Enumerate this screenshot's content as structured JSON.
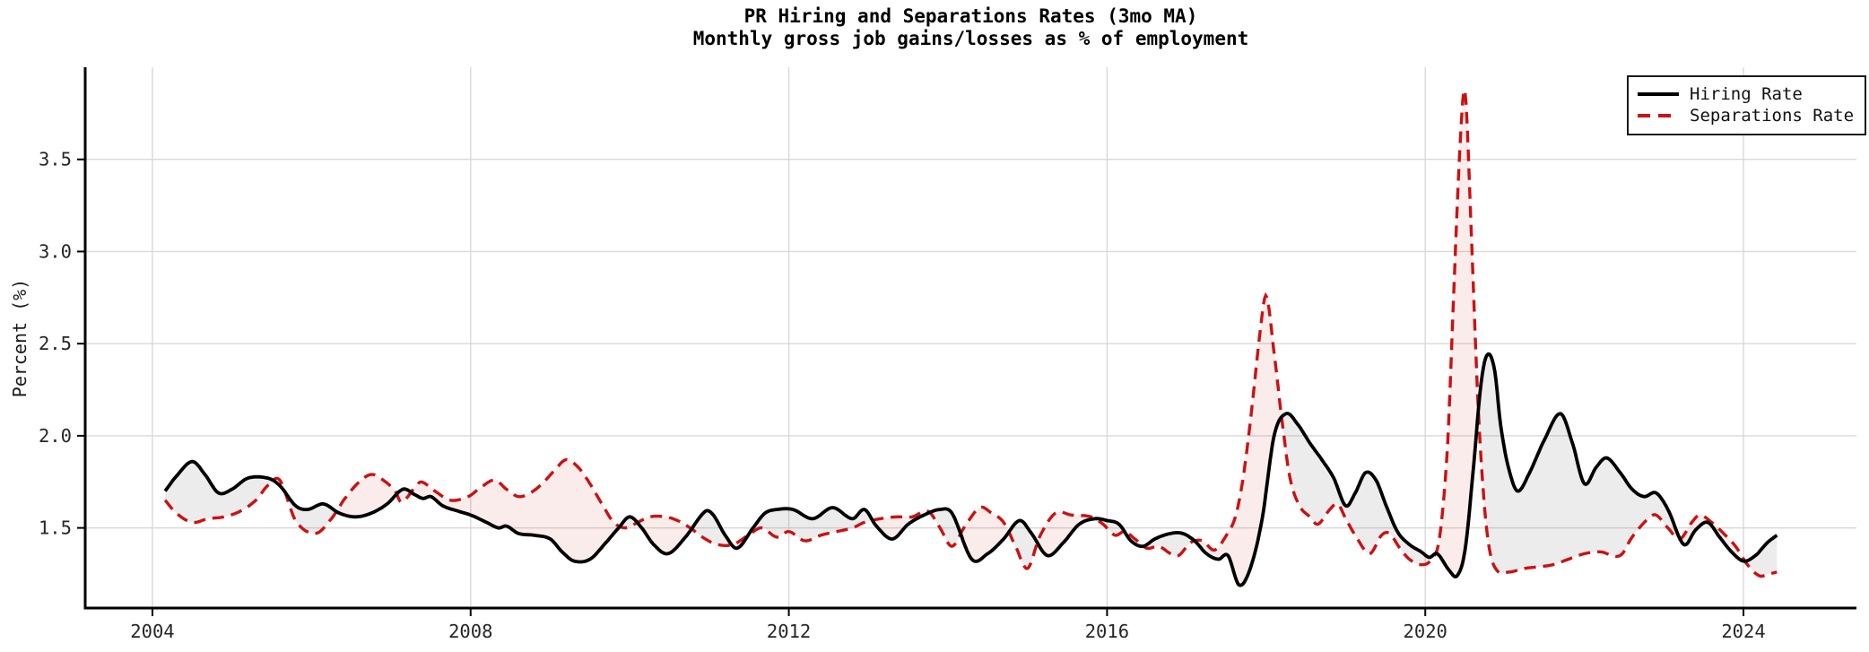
{
  "chart_data": {
    "type": "line",
    "title": "PR Hiring and Separations Rates (3mo MA)",
    "subtitle": "Monthly gross job gains/losses as % of employment",
    "xlabel": "",
    "ylabel": "Percent (%)",
    "xlim": [
      2003.155,
      2025.42
    ],
    "ylim": [
      1.065,
      4.0
    ],
    "x_ticks": [
      2004,
      2008,
      2012,
      2016,
      2020,
      2024
    ],
    "y_ticks": [
      1.5,
      2.0,
      2.5,
      3.0,
      3.5
    ],
    "grid": true,
    "grid_color": "#d9d9d9",
    "spine_color": "#000000",
    "tick_label_color": "#262626",
    "legend_position": "upper right",
    "fill_hiring_above_color": "rgba(128,128,128,0.15)",
    "fill_separations_above_color": "rgba(204,17,17,0.08)",
    "series": [
      {
        "name": "Hiring Rate",
        "color": "#000000",
        "style": "solid",
        "points": [
          [
            2004.16,
            1.7
          ],
          [
            2004.3,
            1.78
          ],
          [
            2004.5,
            1.86
          ],
          [
            2004.66,
            1.79
          ],
          [
            2004.83,
            1.69
          ],
          [
            2005.0,
            1.71
          ],
          [
            2005.2,
            1.77
          ],
          [
            2005.45,
            1.77
          ],
          [
            2005.6,
            1.73
          ],
          [
            2005.8,
            1.62
          ],
          [
            2005.95,
            1.6
          ],
          [
            2006.15,
            1.63
          ],
          [
            2006.35,
            1.58
          ],
          [
            2006.55,
            1.56
          ],
          [
            2006.75,
            1.58
          ],
          [
            2006.95,
            1.63
          ],
          [
            2007.15,
            1.71
          ],
          [
            2007.3,
            1.68
          ],
          [
            2007.4,
            1.66
          ],
          [
            2007.5,
            1.67
          ],
          [
            2007.65,
            1.62
          ],
          [
            2007.85,
            1.59
          ],
          [
            2008.0,
            1.57
          ],
          [
            2008.2,
            1.53
          ],
          [
            2008.35,
            1.5
          ],
          [
            2008.45,
            1.51
          ],
          [
            2008.6,
            1.47
          ],
          [
            2008.8,
            1.46
          ],
          [
            2009.0,
            1.44
          ],
          [
            2009.15,
            1.37
          ],
          [
            2009.3,
            1.32
          ],
          [
            2009.5,
            1.33
          ],
          [
            2009.7,
            1.42
          ],
          [
            2009.86,
            1.5
          ],
          [
            2010.0,
            1.56
          ],
          [
            2010.15,
            1.5
          ],
          [
            2010.3,
            1.41
          ],
          [
            2010.48,
            1.36
          ],
          [
            2010.7,
            1.45
          ],
          [
            2010.95,
            1.59
          ],
          [
            2011.05,
            1.57
          ],
          [
            2011.2,
            1.46
          ],
          [
            2011.35,
            1.39
          ],
          [
            2011.55,
            1.5
          ],
          [
            2011.7,
            1.58
          ],
          [
            2011.85,
            1.6
          ],
          [
            2012.05,
            1.6
          ],
          [
            2012.3,
            1.55
          ],
          [
            2012.55,
            1.61
          ],
          [
            2012.8,
            1.55
          ],
          [
            2012.95,
            1.6
          ],
          [
            2013.1,
            1.51
          ],
          [
            2013.3,
            1.44
          ],
          [
            2013.5,
            1.52
          ],
          [
            2013.7,
            1.57
          ],
          [
            2013.9,
            1.6
          ],
          [
            2014.05,
            1.58
          ],
          [
            2014.3,
            1.33
          ],
          [
            2014.5,
            1.36
          ],
          [
            2014.7,
            1.44
          ],
          [
            2014.9,
            1.54
          ],
          [
            2015.05,
            1.47
          ],
          [
            2015.25,
            1.35
          ],
          [
            2015.45,
            1.42
          ],
          [
            2015.65,
            1.52
          ],
          [
            2015.85,
            1.55
          ],
          [
            2016.0,
            1.54
          ],
          [
            2016.15,
            1.52
          ],
          [
            2016.3,
            1.43
          ],
          [
            2016.45,
            1.4
          ],
          [
            2016.6,
            1.44
          ],
          [
            2016.8,
            1.47
          ],
          [
            2016.95,
            1.47
          ],
          [
            2017.1,
            1.43
          ],
          [
            2017.25,
            1.36
          ],
          [
            2017.4,
            1.33
          ],
          [
            2017.52,
            1.35
          ],
          [
            2017.66,
            1.19
          ],
          [
            2017.8,
            1.28
          ],
          [
            2017.95,
            1.55
          ],
          [
            2018.1,
            2.0
          ],
          [
            2018.25,
            2.12
          ],
          [
            2018.4,
            2.06
          ],
          [
            2018.55,
            1.96
          ],
          [
            2018.7,
            1.87
          ],
          [
            2018.85,
            1.77
          ],
          [
            2019.0,
            1.62
          ],
          [
            2019.12,
            1.69
          ],
          [
            2019.25,
            1.8
          ],
          [
            2019.38,
            1.76
          ],
          [
            2019.5,
            1.63
          ],
          [
            2019.65,
            1.48
          ],
          [
            2019.8,
            1.41
          ],
          [
            2019.95,
            1.37
          ],
          [
            2020.05,
            1.34
          ],
          [
            2020.15,
            1.36
          ],
          [
            2020.3,
            1.27
          ],
          [
            2020.4,
            1.24
          ],
          [
            2020.5,
            1.38
          ],
          [
            2020.6,
            1.8
          ],
          [
            2020.7,
            2.28
          ],
          [
            2020.78,
            2.44
          ],
          [
            2020.87,
            2.36
          ],
          [
            2020.95,
            2.05
          ],
          [
            2021.05,
            1.82
          ],
          [
            2021.16,
            1.7
          ],
          [
            2021.3,
            1.79
          ],
          [
            2021.5,
            1.98
          ],
          [
            2021.7,
            2.12
          ],
          [
            2021.85,
            1.96
          ],
          [
            2022.0,
            1.74
          ],
          [
            2022.15,
            1.83
          ],
          [
            2022.28,
            1.88
          ],
          [
            2022.45,
            1.8
          ],
          [
            2022.6,
            1.71
          ],
          [
            2022.75,
            1.67
          ],
          [
            2022.9,
            1.69
          ],
          [
            2023.05,
            1.6
          ],
          [
            2023.25,
            1.41
          ],
          [
            2023.4,
            1.49
          ],
          [
            2023.55,
            1.53
          ],
          [
            2023.7,
            1.45
          ],
          [
            2023.85,
            1.37
          ],
          [
            2024.0,
            1.32
          ],
          [
            2024.15,
            1.35
          ],
          [
            2024.3,
            1.42
          ],
          [
            2024.42,
            1.46
          ]
        ]
      },
      {
        "name": "Separations Rate",
        "color": "#cc1111",
        "style": "dashed",
        "points": [
          [
            2004.16,
            1.65
          ],
          [
            2004.3,
            1.58
          ],
          [
            2004.5,
            1.53
          ],
          [
            2004.7,
            1.55
          ],
          [
            2004.9,
            1.56
          ],
          [
            2005.1,
            1.59
          ],
          [
            2005.3,
            1.65
          ],
          [
            2005.45,
            1.73
          ],
          [
            2005.6,
            1.76
          ],
          [
            2005.8,
            1.54
          ],
          [
            2006.05,
            1.47
          ],
          [
            2006.25,
            1.55
          ],
          [
            2006.42,
            1.66
          ],
          [
            2006.6,
            1.75
          ],
          [
            2006.76,
            1.79
          ],
          [
            2006.93,
            1.75
          ],
          [
            2007.05,
            1.7
          ],
          [
            2007.13,
            1.64
          ],
          [
            2007.3,
            1.72
          ],
          [
            2007.38,
            1.75
          ],
          [
            2007.55,
            1.7
          ],
          [
            2007.75,
            1.65
          ],
          [
            2007.97,
            1.67
          ],
          [
            2008.1,
            1.71
          ],
          [
            2008.3,
            1.76
          ],
          [
            2008.45,
            1.71
          ],
          [
            2008.6,
            1.67
          ],
          [
            2008.75,
            1.69
          ],
          [
            2008.9,
            1.74
          ],
          [
            2009.05,
            1.81
          ],
          [
            2009.2,
            1.87
          ],
          [
            2009.35,
            1.83
          ],
          [
            2009.5,
            1.74
          ],
          [
            2009.65,
            1.63
          ],
          [
            2009.8,
            1.53
          ],
          [
            2009.95,
            1.5
          ],
          [
            2010.1,
            1.53
          ],
          [
            2010.25,
            1.56
          ],
          [
            2010.45,
            1.56
          ],
          [
            2010.6,
            1.54
          ],
          [
            2010.76,
            1.5
          ],
          [
            2010.95,
            1.44
          ],
          [
            2011.1,
            1.41
          ],
          [
            2011.3,
            1.41
          ],
          [
            2011.52,
            1.47
          ],
          [
            2011.66,
            1.5
          ],
          [
            2011.85,
            1.45
          ],
          [
            2012.0,
            1.48
          ],
          [
            2012.2,
            1.43
          ],
          [
            2012.4,
            1.46
          ],
          [
            2012.6,
            1.48
          ],
          [
            2012.8,
            1.5
          ],
          [
            2012.95,
            1.53
          ],
          [
            2013.15,
            1.55
          ],
          [
            2013.35,
            1.56
          ],
          [
            2013.55,
            1.56
          ],
          [
            2013.75,
            1.59
          ],
          [
            2013.9,
            1.5
          ],
          [
            2014.05,
            1.4
          ],
          [
            2014.2,
            1.5
          ],
          [
            2014.4,
            1.61
          ],
          [
            2014.55,
            1.58
          ],
          [
            2014.7,
            1.53
          ],
          [
            2014.85,
            1.4
          ],
          [
            2015.0,
            1.28
          ],
          [
            2015.15,
            1.45
          ],
          [
            2015.35,
            1.58
          ],
          [
            2015.55,
            1.57
          ],
          [
            2015.8,
            1.56
          ],
          [
            2015.95,
            1.52
          ],
          [
            2016.1,
            1.46
          ],
          [
            2016.22,
            1.48
          ],
          [
            2016.35,
            1.44
          ],
          [
            2016.5,
            1.39
          ],
          [
            2016.65,
            1.4
          ],
          [
            2016.8,
            1.36
          ],
          [
            2016.9,
            1.35
          ],
          [
            2017.05,
            1.42
          ],
          [
            2017.2,
            1.43
          ],
          [
            2017.35,
            1.38
          ],
          [
            2017.5,
            1.46
          ],
          [
            2017.62,
            1.57
          ],
          [
            2017.72,
            1.8
          ],
          [
            2017.82,
            2.15
          ],
          [
            2017.92,
            2.55
          ],
          [
            2018.0,
            2.76
          ],
          [
            2018.1,
            2.45
          ],
          [
            2018.2,
            2.08
          ],
          [
            2018.3,
            1.77
          ],
          [
            2018.42,
            1.62
          ],
          [
            2018.55,
            1.56
          ],
          [
            2018.65,
            1.52
          ],
          [
            2018.8,
            1.6
          ],
          [
            2018.9,
            1.63
          ],
          [
            2019.0,
            1.55
          ],
          [
            2019.12,
            1.46
          ],
          [
            2019.3,
            1.36
          ],
          [
            2019.45,
            1.46
          ],
          [
            2019.55,
            1.47
          ],
          [
            2019.68,
            1.39
          ],
          [
            2019.8,
            1.33
          ],
          [
            2019.95,
            1.3
          ],
          [
            2020.08,
            1.33
          ],
          [
            2020.18,
            1.45
          ],
          [
            2020.28,
            1.95
          ],
          [
            2020.36,
            2.8
          ],
          [
            2020.44,
            3.6
          ],
          [
            2020.5,
            3.87
          ],
          [
            2020.57,
            3.2
          ],
          [
            2020.65,
            2.3
          ],
          [
            2020.72,
            1.75
          ],
          [
            2020.8,
            1.4
          ],
          [
            2020.9,
            1.27
          ],
          [
            2021.05,
            1.26
          ],
          [
            2021.25,
            1.28
          ],
          [
            2021.45,
            1.29
          ],
          [
            2021.6,
            1.3
          ],
          [
            2021.8,
            1.33
          ],
          [
            2022.0,
            1.36
          ],
          [
            2022.2,
            1.37
          ],
          [
            2022.45,
            1.35
          ],
          [
            2022.6,
            1.45
          ],
          [
            2022.8,
            1.55
          ],
          [
            2022.9,
            1.57
          ],
          [
            2023.05,
            1.5
          ],
          [
            2023.2,
            1.44
          ],
          [
            2023.35,
            1.53
          ],
          [
            2023.45,
            1.57
          ],
          [
            2023.6,
            1.53
          ],
          [
            2023.75,
            1.47
          ],
          [
            2023.9,
            1.4
          ],
          [
            2024.05,
            1.3
          ],
          [
            2024.2,
            1.24
          ],
          [
            2024.32,
            1.25
          ],
          [
            2024.42,
            1.26
          ]
        ]
      }
    ]
  },
  "legend": {
    "items": [
      {
        "label": "Hiring Rate",
        "style": "solid",
        "color": "#000000"
      },
      {
        "label": "Separations Rate",
        "style": "dashed",
        "color": "#cc1111"
      }
    ]
  }
}
